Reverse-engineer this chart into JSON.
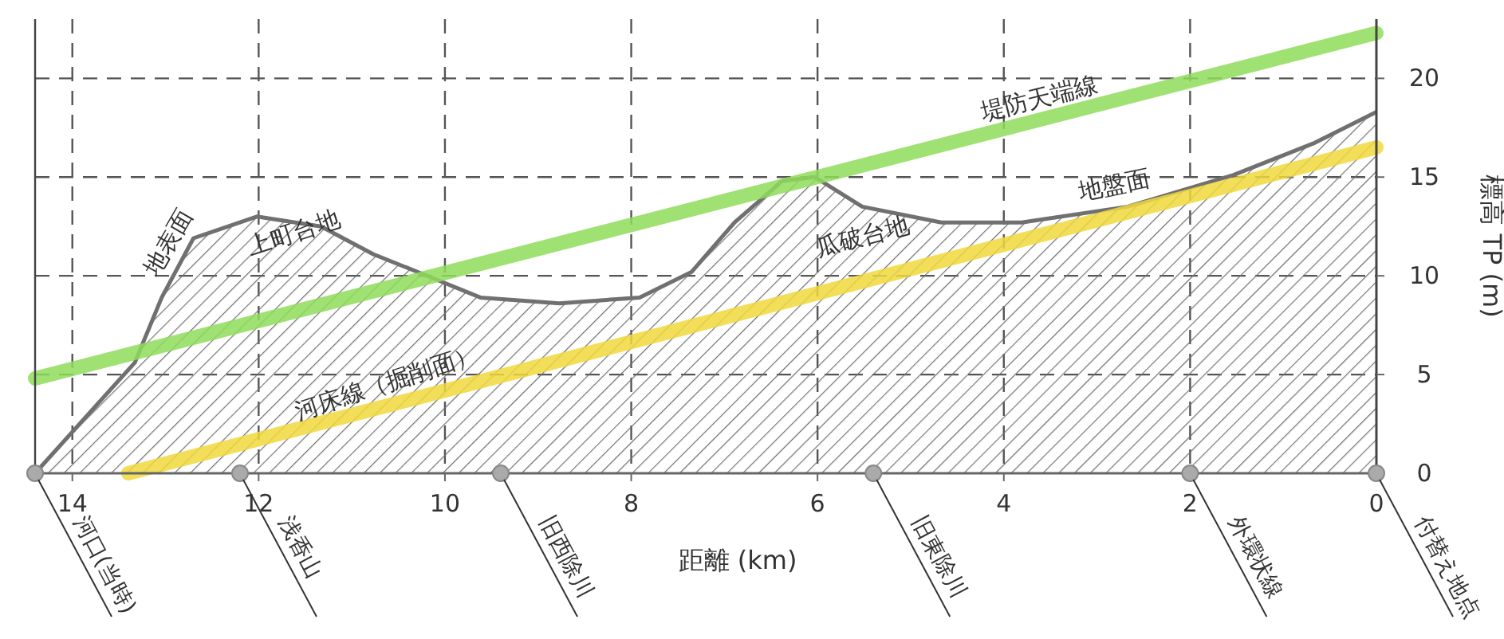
{
  "chart_data": {
    "type": "line",
    "xlabel": "距離 (km)",
    "ylabel": "標高 TP (m)",
    "xlim": [
      14.4,
      0
    ],
    "ylim": [
      0,
      23
    ],
    "xticks": [
      14,
      12,
      10,
      8,
      6,
      4,
      2,
      0
    ],
    "yticks": [
      0,
      5,
      10,
      15,
      20
    ],
    "grid": true,
    "line_style": "solid",
    "series": [
      {
        "type": "area",
        "color": "#707070",
        "x": [
          14.4,
          13.33,
          13.04,
          12.7,
          12.02,
          11.33,
          10.77,
          10.19,
          9.62,
          8.77,
          7.91,
          7.35,
          6.89,
          6.38,
          6.03,
          5.52,
          4.67,
          3.81,
          2.67,
          1.54,
          0.68,
          0
        ],
        "values": [
          0,
          5.6,
          8.9,
          11.9,
          13,
          12.5,
          11.1,
          10,
          8.9,
          8.6,
          8.9,
          10.2,
          12.7,
          14.8,
          15,
          13.5,
          12.7,
          12.7,
          13.5,
          15.1,
          16.7,
          18.3
        ]
      },
      {
        "color": "#8fdc5a",
        "x": [
          14.4,
          0
        ],
        "values": [
          4.8,
          22.3
        ]
      },
      {
        "color": "#f0d83c",
        "x": [
          13.4,
          0
        ],
        "values": [
          0,
          16.5
        ]
      }
    ],
    "annotations": [
      "地表面",
      "上町台地",
      "瓜破台地",
      {
        "text": "堤防天端線",
        "x": 3.6,
        "y": 18.6
      },
      "地盤面",
      {
        "text": "河床線（掘削面）",
        "x": 10.6,
        "y": 4.2
      },
      {
        "text": "河口(当時)",
        "x": 14.4,
        "y": 0
      },
      {
        "text": "浅香山",
        "x": 12.2,
        "y": 0
      },
      {
        "text": "旧西除川",
        "x": 9.4,
        "y": 0
      },
      {
        "text": "旧東除川",
        "x": 5.4,
        "y": 0
      },
      {
        "text": "外環状線",
        "x": 2,
        "y": 0
      },
      {
        "text": "付替え地点",
        "x": 0,
        "y": 0
      }
    ]
  }
}
